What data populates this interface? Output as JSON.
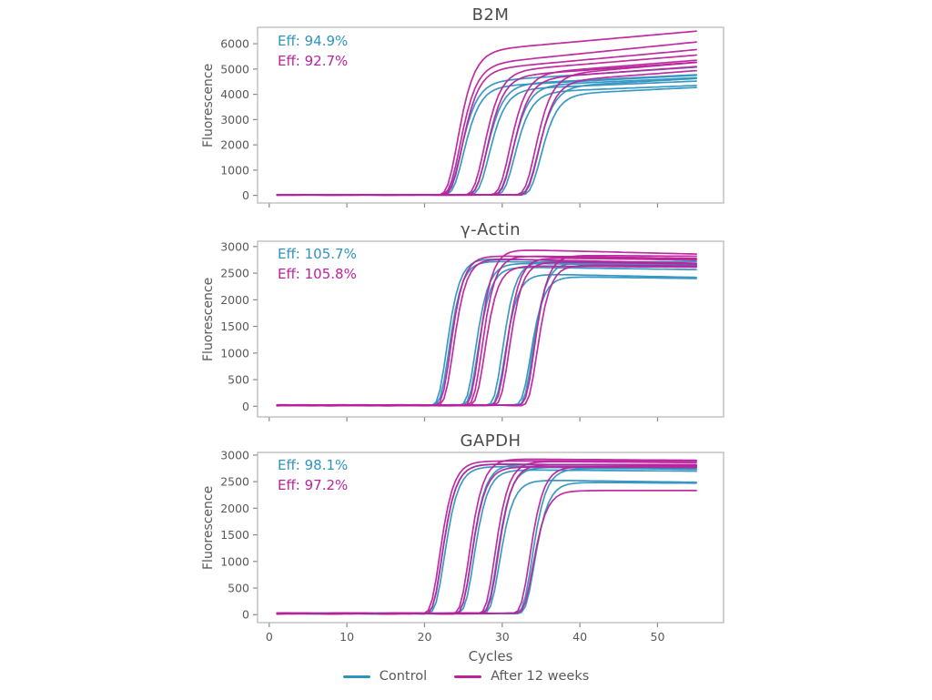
{
  "figure": {
    "background": "#ffffff"
  },
  "xlabel_bottom": "Cycles",
  "legend": {
    "items": [
      {
        "series": "control",
        "label": "Control"
      },
      {
        "series": "after_12_weeks",
        "label": "After 12 weeks"
      }
    ]
  },
  "chart_data": {
    "type": "line",
    "subtype": "qpcr-amplification-curves",
    "xlabel": "Cycles",
    "xticks": [
      0,
      10,
      20,
      30,
      40,
      50
    ],
    "xlim": [
      -1.5,
      58.5
    ],
    "cycles": {
      "start": 1,
      "end": 55,
      "step": 0.5
    },
    "series_colors": {
      "control": "#2f93c0",
      "after_12_weeks": "#bb229c"
    },
    "frame_color": "#b3b3b3",
    "tick_color": "#8a8a8a",
    "tick_label_color": "#595959",
    "title_color": "#4a4a4a",
    "panels": [
      {
        "title": "B2M",
        "ylabel": "Fluorescence",
        "ylim": [
          -300,
          6650
        ],
        "yticks": [
          0,
          1000,
          2000,
          3000,
          4000,
          5000,
          6000
        ],
        "efficiency": {
          "control": "Eff: 94.9%",
          "after_12_weeks": "Eff: 92.7%"
        },
        "sigmoid_k": 0.8,
        "baseline": 20,
        "curves": [
          {
            "series": "control",
            "ct": 24.6,
            "plateau": 4450,
            "drift": 20
          },
          {
            "series": "control",
            "ct": 24.95,
            "plateau": 4250,
            "drift": 16
          },
          {
            "series": "control",
            "ct": 27.9,
            "plateau": 4350,
            "drift": 15
          },
          {
            "series": "control",
            "ct": 28.25,
            "plateau": 4150,
            "drift": 13
          },
          {
            "series": "control",
            "ct": 31.2,
            "plateau": 4300,
            "drift": 14
          },
          {
            "series": "control",
            "ct": 31.55,
            "plateau": 4050,
            "drift": 12
          },
          {
            "series": "control",
            "ct": 34.5,
            "plateau": 4250,
            "drift": 17
          },
          {
            "series": "control",
            "ct": 34.9,
            "plateau": 3950,
            "drift": 15
          },
          {
            "series": "after_12_weeks",
            "ct": 24.2,
            "plateau": 5650,
            "drift": 27
          },
          {
            "series": "after_12_weeks",
            "ct": 24.5,
            "plateau": 5100,
            "drift": 31
          },
          {
            "series": "after_12_weeks",
            "ct": 24.75,
            "plateau": 4900,
            "drift": 28
          },
          {
            "series": "after_12_weeks",
            "ct": 27.6,
            "plateau": 4850,
            "drift": 25
          },
          {
            "series": "after_12_weeks",
            "ct": 27.95,
            "plateau": 4650,
            "drift": 22
          },
          {
            "series": "after_12_weeks",
            "ct": 30.9,
            "plateau": 4750,
            "drift": 24
          },
          {
            "series": "after_12_weeks",
            "ct": 31.3,
            "plateau": 4550,
            "drift": 22
          },
          {
            "series": "after_12_weeks",
            "ct": 34.2,
            "plateau": 4700,
            "drift": 26
          },
          {
            "series": "after_12_weeks",
            "ct": 34.6,
            "plateau": 4450,
            "drift": 23
          }
        ]
      },
      {
        "title": "γ-Actin",
        "ylabel": "Fluorescence",
        "ylim": [
          -200,
          3100
        ],
        "yticks": [
          0,
          500,
          1000,
          1500,
          2000,
          2500,
          3000
        ],
        "efficiency": {
          "control": "Eff: 105.7%",
          "after_12_weeks": "Eff: 105.8%"
        },
        "sigmoid_k": 1.0,
        "baseline": 18,
        "curves": [
          {
            "series": "control",
            "ct": 22.8,
            "plateau": 2780,
            "drift": -4
          },
          {
            "series": "control",
            "ct": 23.1,
            "plateau": 2720,
            "drift": -3
          },
          {
            "series": "control",
            "ct": 26.5,
            "plateau": 2680,
            "drift": -2
          },
          {
            "series": "control",
            "ct": 26.8,
            "plateau": 2600,
            "drift": -2
          },
          {
            "series": "control",
            "ct": 30.0,
            "plateau": 2720,
            "drift": -3
          },
          {
            "series": "control",
            "ct": 30.3,
            "plateau": 2480,
            "drift": -3
          },
          {
            "series": "control",
            "ct": 33.6,
            "plateau": 2420,
            "drift": -2
          },
          {
            "series": "control",
            "ct": 33.9,
            "plateau": 2680,
            "drift": 1
          },
          {
            "series": "after_12_weeks",
            "ct": 23.3,
            "plateau": 2820,
            "drift": -2
          },
          {
            "series": "after_12_weeks",
            "ct": 23.65,
            "plateau": 2760,
            "drift": -3
          },
          {
            "series": "after_12_weeks",
            "ct": 27.0,
            "plateau": 2940,
            "drift": -3.5
          },
          {
            "series": "after_12_weeks",
            "ct": 27.35,
            "plateau": 2820,
            "drift": -2
          },
          {
            "series": "after_12_weeks",
            "ct": 27.7,
            "plateau": 2620,
            "drift": -1
          },
          {
            "series": "after_12_weeks",
            "ct": 30.5,
            "plateau": 2780,
            "drift": -2
          },
          {
            "series": "after_12_weeks",
            "ct": 30.85,
            "plateau": 2700,
            "drift": -2
          },
          {
            "series": "after_12_weeks",
            "ct": 34.1,
            "plateau": 2820,
            "drift": -1
          },
          {
            "series": "after_12_weeks",
            "ct": 34.45,
            "plateau": 2640,
            "drift": -1
          }
        ]
      },
      {
        "title": "GAPDH",
        "ylabel": "Fluorescence",
        "ylim": [
          -150,
          3050
        ],
        "yticks": [
          0,
          500,
          1000,
          1500,
          2000,
          2500,
          3000
        ],
        "efficiency": {
          "control": "Eff: 98.1%",
          "after_12_weeks": "Eff: 97.2%"
        },
        "sigmoid_k": 0.95,
        "baseline": 22,
        "curves": [
          {
            "series": "control",
            "ct": 22.2,
            "plateau": 2820,
            "drift": -1
          },
          {
            "series": "control",
            "ct": 22.5,
            "plateau": 2760,
            "drift": 0
          },
          {
            "series": "control",
            "ct": 26.0,
            "plateau": 2810,
            "drift": -1
          },
          {
            "series": "control",
            "ct": 26.3,
            "plateau": 2700,
            "drift": -1
          },
          {
            "series": "control",
            "ct": 29.3,
            "plateau": 2760,
            "drift": -2
          },
          {
            "series": "control",
            "ct": 29.6,
            "plateau": 2520,
            "drift": -2
          },
          {
            "series": "control",
            "ct": 33.8,
            "plateau": 2720,
            "drift": 0
          },
          {
            "series": "control",
            "ct": 34.1,
            "plateau": 2470,
            "drift": -1
          },
          {
            "series": "after_12_weeks",
            "ct": 21.9,
            "plateau": 2870,
            "drift": 0
          },
          {
            "series": "after_12_weeks",
            "ct": 22.2,
            "plateau": 2810,
            "drift": -1
          },
          {
            "series": "after_12_weeks",
            "ct": 25.7,
            "plateau": 2910,
            "drift": -1
          },
          {
            "series": "after_12_weeks",
            "ct": 26.0,
            "plateau": 2760,
            "drift": 0
          },
          {
            "series": "after_12_weeks",
            "ct": 29.0,
            "plateau": 2860,
            "drift": -1
          },
          {
            "series": "after_12_weeks",
            "ct": 29.4,
            "plateau": 2800,
            "drift": 0
          },
          {
            "series": "after_12_weeks",
            "ct": 33.5,
            "plateau": 2760,
            "drift": -1
          },
          {
            "series": "after_12_weeks",
            "ct": 33.9,
            "plateau": 2310,
            "drift": 0
          }
        ]
      }
    ]
  }
}
